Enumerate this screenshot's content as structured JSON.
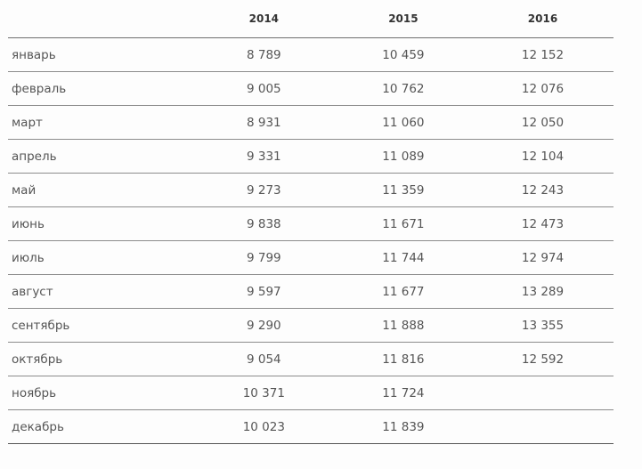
{
  "table": {
    "headers": [
      "",
      "2014",
      "2015",
      "2016"
    ],
    "rows": [
      {
        "month": "январь",
        "y2014": "8 789",
        "y2015": "10 459",
        "y2016": "12 152"
      },
      {
        "month": "февраль",
        "y2014": "9 005",
        "y2015": "10 762",
        "y2016": "12 076"
      },
      {
        "month": "март",
        "y2014": "8 931",
        "y2015": "11 060",
        "y2016": "12 050"
      },
      {
        "month": "апрель",
        "y2014": "9 331",
        "y2015": "11 089",
        "y2016": "12 104"
      },
      {
        "month": "май",
        "y2014": "9 273",
        "y2015": "11 359",
        "y2016": "12 243"
      },
      {
        "month": "июнь",
        "y2014": "9 838",
        "y2015": "11 671",
        "y2016": "12 473"
      },
      {
        "month": "июль",
        "y2014": "9 799",
        "y2015": "11 744",
        "y2016": "12 974"
      },
      {
        "month": "август",
        "y2014": "9 597",
        "y2015": "11 677",
        "y2016": "13 289"
      },
      {
        "month": "сентябрь",
        "y2014": "9 290",
        "y2015": "11 888",
        "y2016": "13 355"
      },
      {
        "month": "октябрь",
        "y2014": "9 054",
        "y2015": "11 816",
        "y2016": "12 592"
      },
      {
        "month": "ноябрь",
        "y2014": "10 371",
        "y2015": "11 724",
        "y2016": ""
      },
      {
        "month": "декабрь",
        "y2014": "10 023",
        "y2015": "11 839",
        "y2016": ""
      }
    ]
  }
}
